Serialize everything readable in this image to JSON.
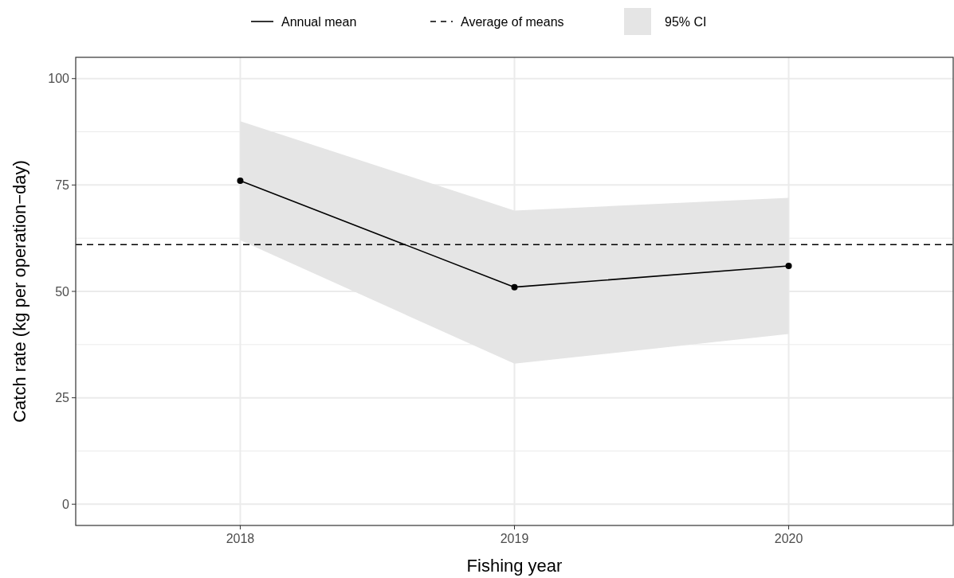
{
  "chart_data": {
    "type": "line",
    "xlabel": "Fishing year",
    "ylabel": "Catch rate (kg per operation−day)",
    "x": [
      2018,
      2019,
      2020
    ],
    "series": [
      {
        "name": "Annual mean",
        "color": "#000000",
        "values": [
          76,
          51,
          56
        ],
        "lower": [
          62,
          33,
          40
        ],
        "upper": [
          90,
          69,
          72
        ]
      }
    ],
    "ref_lines": [
      {
        "axis": "y",
        "value": 61,
        "label": "Average of means",
        "color": "#000000",
        "line_style": "dashed"
      }
    ],
    "annotations": [
      "95% CI"
    ],
    "xlim": [
      2017.4,
      2020.6
    ],
    "xticks": [
      2018,
      2019,
      2020
    ],
    "ylim": [
      -5,
      105
    ],
    "yticks": [
      0,
      25,
      50,
      75,
      100
    ],
    "grid": true,
    "legend": "top",
    "marker": "circle",
    "line_style": "solid"
  }
}
